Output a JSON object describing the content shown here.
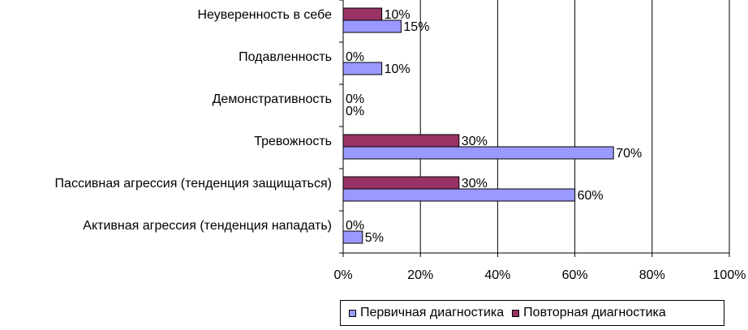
{
  "chart_data": {
    "type": "bar",
    "orientation": "horizontal",
    "categories": [
      "Неуверенность в себе",
      "Подавленность",
      "Демонстративность",
      "Тревожность",
      "Пассивная агрессия (тенденция защищаться)",
      "Активная агрессия (тенденция нападать)"
    ],
    "series": [
      {
        "name": "Повторная диагностика",
        "color": "#993366",
        "values": [
          10,
          0,
          0,
          30,
          30,
          0
        ],
        "labels": [
          "10%",
          "0%",
          "0%",
          "30%",
          "30%",
          "0%"
        ]
      },
      {
        "name": "Первичная диагностика",
        "color": "#9999ff",
        "values": [
          15,
          10,
          0,
          70,
          60,
          5
        ],
        "labels": [
          "15%",
          "10%",
          "0%",
          "70%",
          "60%",
          "5%"
        ]
      }
    ],
    "xlim": [
      0,
      100
    ],
    "x_ticks": [
      "0%",
      "20%",
      "40%",
      "60%",
      "80%",
      "100%"
    ],
    "grid": "vertical",
    "legend_position": "bottom-right",
    "legend_order": [
      "Первичная диагностика",
      "Повторная диагностика"
    ]
  }
}
